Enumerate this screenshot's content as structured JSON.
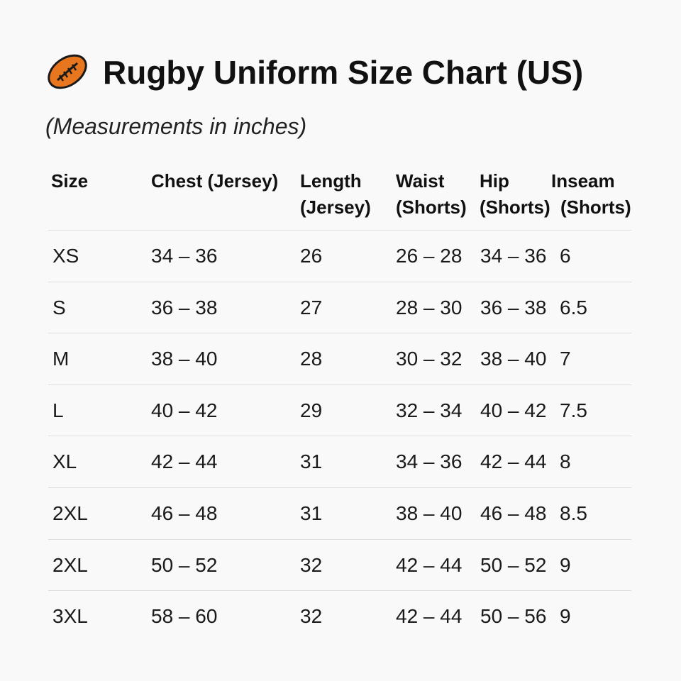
{
  "header": {
    "title": "Rugby Uniform Size Chart (US)",
    "subtitle": "(Measurements in inches)"
  },
  "table": {
    "columns": [
      [
        "Size"
      ],
      [
        "Chest (Jersey)"
      ],
      [
        "Length",
        "(Jersey)"
      ],
      [
        "Waist",
        "(Shorts)"
      ],
      [
        "Hip",
        "(Shorts)"
      ],
      [
        "Inseam",
        "(Shorts)"
      ]
    ],
    "rows": [
      [
        "XS",
        "34 – 36",
        "26",
        "26 – 28",
        "34 – 36",
        "6"
      ],
      [
        "S",
        "36 – 38",
        "27",
        "28 – 30",
        "36 – 38",
        "6.5"
      ],
      [
        "M",
        "38 – 40",
        "28",
        "30 – 32",
        "38 – 40",
        "7"
      ],
      [
        "L",
        "40 – 42",
        "29",
        "32 – 34",
        "40 – 42",
        "7.5"
      ],
      [
        "XL",
        "42 – 44",
        "31",
        "34 – 36",
        "42 – 44",
        "8"
      ],
      [
        "2XL",
        "46 – 48",
        "31",
        "38 – 40",
        "46 – 48",
        "8.5"
      ],
      [
        "2XL",
        "50 – 52",
        "32",
        "42 – 44",
        "50 – 52",
        "9"
      ],
      [
        "3XL",
        "58 – 60",
        "32",
        "42 – 44",
        "50 – 56",
        "9"
      ]
    ]
  }
}
